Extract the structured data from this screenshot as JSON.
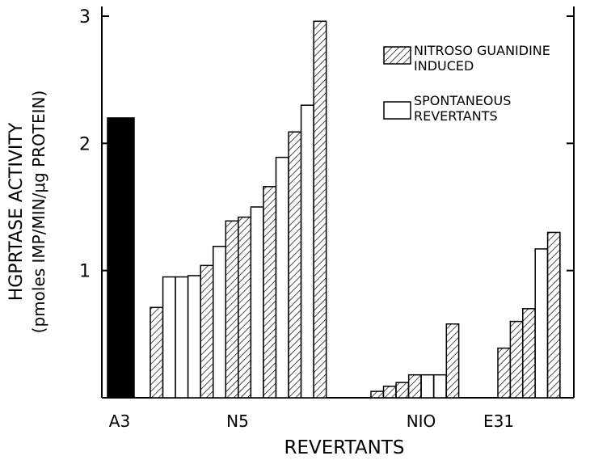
{
  "chart_data": {
    "type": "bar",
    "title": "",
    "xlabel": "REVERTANTS",
    "ylabel_line1": "HGPRTASE ACTIVITY",
    "ylabel_line2": "(pmoles IMP/MIN/μg PROTEIN)",
    "ylim": [
      0,
      3
    ],
    "yticks": [
      "1",
      "2",
      "3"
    ],
    "ytick_values": [
      1,
      2,
      3
    ],
    "grid": false,
    "legend_position": "top-right",
    "colors": {
      "control": "#000000",
      "ng": "#ffffff",
      "spont": "#ffffff",
      "axis": "#000000"
    },
    "legend": [
      {
        "key": "ng",
        "line1": "NITROSO GUANIDINE",
        "line2": "INDUCED"
      },
      {
        "key": "spont",
        "line1": "SPONTANEOUS",
        "line2": "REVERTANTS"
      }
    ],
    "groups": [
      {
        "label": "A3",
        "bars": [
          {
            "value": 2.2,
            "kind": "control"
          }
        ]
      },
      {
        "label": "N5",
        "bars": [
          {
            "value": 0.71,
            "kind": "ng"
          },
          {
            "value": 0.95,
            "kind": "spont"
          },
          {
            "value": 0.95,
            "kind": "spont"
          },
          {
            "value": 0.96,
            "kind": "spont"
          },
          {
            "value": 1.04,
            "kind": "ng"
          },
          {
            "value": 1.19,
            "kind": "spont"
          },
          {
            "value": 1.39,
            "kind": "ng"
          },
          {
            "value": 1.42,
            "kind": "ng"
          },
          {
            "value": 1.5,
            "kind": "spont"
          },
          {
            "value": 1.66,
            "kind": "ng"
          },
          {
            "value": 1.89,
            "kind": "spont"
          },
          {
            "value": 2.09,
            "kind": "ng"
          },
          {
            "value": 2.3,
            "kind": "spont"
          },
          {
            "value": 2.96,
            "kind": "ng"
          }
        ]
      },
      {
        "label": "NIO",
        "bars": [
          {
            "value": 0.05,
            "kind": "ng"
          },
          {
            "value": 0.09,
            "kind": "ng"
          },
          {
            "value": 0.12,
            "kind": "ng"
          },
          {
            "value": 0.18,
            "kind": "ng"
          },
          {
            "value": 0.18,
            "kind": "spont"
          },
          {
            "value": 0.18,
            "kind": "spont"
          },
          {
            "value": 0.58,
            "kind": "ng"
          }
        ]
      },
      {
        "label": "E31",
        "bars": [
          {
            "value": 0.39,
            "kind": "ng"
          },
          {
            "value": 0.6,
            "kind": "ng"
          },
          {
            "value": 0.7,
            "kind": "ng"
          },
          {
            "value": 1.17,
            "kind": "spont"
          },
          {
            "value": 1.3,
            "kind": "ng"
          }
        ]
      }
    ]
  }
}
